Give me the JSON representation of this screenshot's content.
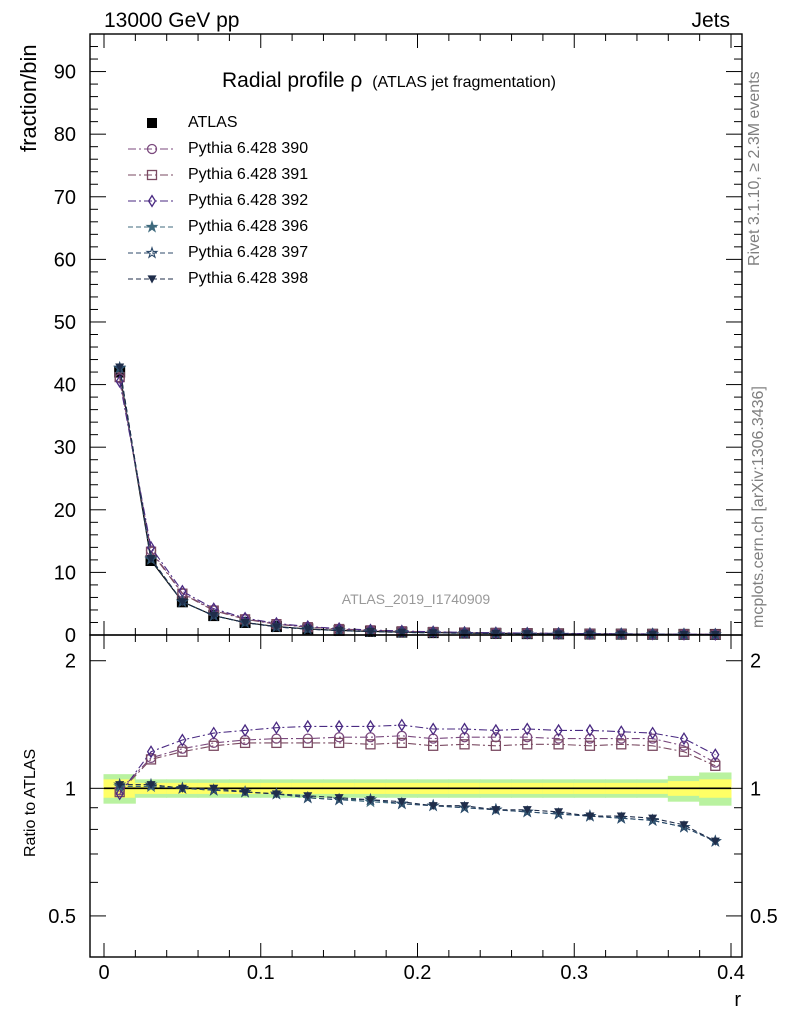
{
  "header": {
    "left": "13000 GeV pp",
    "right": "Jets"
  },
  "side_labels": {
    "top": "Rivet 3.1.10, ≥ 2.3M events",
    "bottom": "mcplots.cern.ch [arXiv:1306.3436]"
  },
  "colors": {
    "ATLAS": "#000000",
    "Pythia 6.428 390": "#7b4a7e",
    "Pythia 6.428 391": "#7a4a62",
    "Pythia 6.428 392": "#4a2a82",
    "Pythia 6.428 396": "#3f6a7d",
    "Pythia 6.428 397": "#2c4a6a",
    "Pythia 6.428 398": "#1f2d4a",
    "band_inner": "#ffff66",
    "band_outer": "#b9f2a0"
  },
  "chart_data": [
    {
      "type": "line",
      "title": "Radial profile ρ",
      "subtitle": "(ATLAS jet fragmentation)",
      "watermark": "ATLAS_2019_I1740909",
      "xlabel": "",
      "ylabel": "fraction/bin",
      "xlim": [
        0,
        0.4
      ],
      "ylim": [
        0,
        96
      ],
      "yticks": [
        0,
        10,
        20,
        30,
        40,
        50,
        60,
        70,
        80,
        90
      ],
      "grid": false,
      "legend": "top-left",
      "x": [
        0.01,
        0.03,
        0.05,
        0.07,
        0.09,
        0.11,
        0.13,
        0.15,
        0.17,
        0.19,
        0.21,
        0.23,
        0.25,
        0.27,
        0.29,
        0.31,
        0.33,
        0.35,
        0.37,
        0.39
      ],
      "series": [
        {
          "name": "ATLAS",
          "marker": "square-filled",
          "values": [
            42.0,
            11.9,
            5.3,
            3.1,
            2.0,
            1.35,
            0.98,
            0.74,
            0.58,
            0.46,
            0.38,
            0.31,
            0.26,
            0.22,
            0.19,
            0.16,
            0.14,
            0.12,
            0.1,
            0.09
          ]
        },
        {
          "name": "Pythia 6.428 390",
          "marker": "circle-open",
          "values": [
            41.0,
            13.5,
            6.7,
            4.0,
            2.6,
            1.78,
            1.29,
            0.98,
            0.76,
            0.61,
            0.49,
            0.4,
            0.34,
            0.29,
            0.25,
            0.21,
            0.18,
            0.16,
            0.13,
            0.1
          ]
        },
        {
          "name": "Pythia 6.428 391",
          "marker": "square-open",
          "values": [
            41.2,
            13.3,
            6.6,
            3.9,
            2.5,
            1.73,
            1.25,
            0.95,
            0.74,
            0.59,
            0.48,
            0.39,
            0.33,
            0.28,
            0.24,
            0.2,
            0.17,
            0.15,
            0.12,
            0.1
          ]
        },
        {
          "name": "Pythia 6.428 392",
          "marker": "diamond-open",
          "values": [
            40.5,
            14.0,
            7.0,
            4.2,
            2.7,
            1.85,
            1.35,
            1.03,
            0.8,
            0.64,
            0.51,
            0.42,
            0.35,
            0.3,
            0.26,
            0.22,
            0.19,
            0.16,
            0.13,
            0.11
          ]
        },
        {
          "name": "Pythia 6.428 396",
          "marker": "star-filled",
          "values": [
            42.6,
            12.1,
            5.3,
            3.1,
            1.98,
            1.3,
            0.94,
            0.7,
            0.54,
            0.42,
            0.35,
            0.28,
            0.23,
            0.19,
            0.16,
            0.14,
            0.12,
            0.1,
            0.08,
            0.07
          ]
        },
        {
          "name": "Pythia 6.428 397",
          "marker": "star-open",
          "values": [
            42.7,
            12.2,
            5.3,
            3.1,
            1.98,
            1.3,
            0.94,
            0.7,
            0.54,
            0.43,
            0.35,
            0.28,
            0.23,
            0.2,
            0.17,
            0.14,
            0.12,
            0.1,
            0.08,
            0.07
          ]
        },
        {
          "name": "Pythia 6.428 398",
          "marker": "triangle-down-filled",
          "values": [
            42.8,
            12.2,
            5.3,
            3.1,
            1.98,
            1.31,
            0.95,
            0.7,
            0.54,
            0.43,
            0.35,
            0.28,
            0.24,
            0.2,
            0.17,
            0.14,
            0.12,
            0.1,
            0.08,
            0.07
          ]
        }
      ]
    },
    {
      "type": "line",
      "xlabel": "r",
      "ylabel": "Ratio to ATLAS",
      "xlim": [
        0,
        0.4
      ],
      "ylim": [
        0.4,
        2.3
      ],
      "yscale": "log",
      "yticks": [
        0.5,
        1,
        2
      ],
      "xticks": [
        0,
        0.1,
        0.2,
        0.3,
        0.4
      ],
      "reference_line": 1,
      "x": [
        0.01,
        0.03,
        0.05,
        0.07,
        0.09,
        0.11,
        0.13,
        0.15,
        0.17,
        0.19,
        0.21,
        0.23,
        0.25,
        0.27,
        0.29,
        0.31,
        0.33,
        0.35,
        0.37,
        0.39
      ],
      "uncertainty_inner": [
        0.05,
        0.03,
        0.03,
        0.03,
        0.03,
        0.03,
        0.03,
        0.03,
        0.03,
        0.03,
        0.03,
        0.03,
        0.03,
        0.03,
        0.03,
        0.03,
        0.03,
        0.03,
        0.04,
        0.05
      ],
      "uncertainty_outer": [
        0.08,
        0.05,
        0.05,
        0.05,
        0.05,
        0.05,
        0.05,
        0.05,
        0.05,
        0.05,
        0.05,
        0.05,
        0.05,
        0.05,
        0.05,
        0.05,
        0.05,
        0.05,
        0.07,
        0.09
      ],
      "series": [
        {
          "name": "Pythia 6.428 390",
          "marker": "circle-open",
          "values": [
            0.99,
            1.18,
            1.24,
            1.28,
            1.3,
            1.31,
            1.31,
            1.32,
            1.32,
            1.33,
            1.31,
            1.32,
            1.32,
            1.32,
            1.31,
            1.31,
            1.31,
            1.31,
            1.26,
            1.15
          ]
        },
        {
          "name": "Pythia 6.428 391",
          "marker": "square-open",
          "values": [
            0.98,
            1.17,
            1.22,
            1.26,
            1.28,
            1.28,
            1.28,
            1.28,
            1.27,
            1.28,
            1.26,
            1.27,
            1.26,
            1.27,
            1.27,
            1.26,
            1.27,
            1.26,
            1.22,
            1.13
          ]
        },
        {
          "name": "Pythia 6.428 392",
          "marker": "diamond-open",
          "values": [
            0.97,
            1.22,
            1.3,
            1.35,
            1.37,
            1.39,
            1.4,
            1.4,
            1.4,
            1.41,
            1.38,
            1.38,
            1.37,
            1.38,
            1.37,
            1.37,
            1.36,
            1.35,
            1.31,
            1.2
          ]
        },
        {
          "name": "Pythia 6.428 396",
          "marker": "star-filled",
          "values": [
            1.01,
            1.01,
            1.0,
            0.99,
            0.98,
            0.97,
            0.95,
            0.94,
            0.93,
            0.92,
            0.91,
            0.9,
            0.89,
            0.88,
            0.87,
            0.86,
            0.85,
            0.84,
            0.81,
            0.75
          ]
        },
        {
          "name": "Pythia 6.428 397",
          "marker": "star-open",
          "values": [
            1.02,
            1.02,
            1.0,
            0.99,
            0.98,
            0.97,
            0.95,
            0.94,
            0.94,
            0.92,
            0.91,
            0.9,
            0.89,
            0.88,
            0.87,
            0.86,
            0.85,
            0.84,
            0.81,
            0.75
          ]
        },
        {
          "name": "Pythia 6.428 398",
          "marker": "triangle-down-filled",
          "values": [
            1.02,
            1.02,
            1.0,
            1.0,
            0.98,
            0.97,
            0.96,
            0.95,
            0.94,
            0.93,
            0.91,
            0.91,
            0.89,
            0.89,
            0.88,
            0.86,
            0.86,
            0.85,
            0.82,
            0.75
          ]
        }
      ]
    }
  ]
}
